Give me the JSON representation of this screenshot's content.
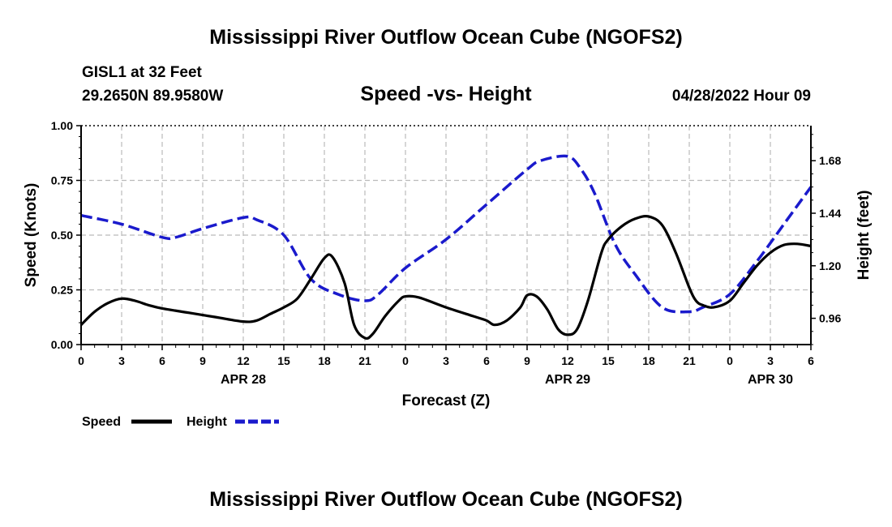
{
  "header": {
    "title": "Mississippi River Outflow Ocean Cube (NGOFS2)",
    "station": "GISL1 at 32 Feet",
    "location": "29.2650N  89.9580W",
    "chart_title": "Speed -vs- Height",
    "datetime": "04/28/2022 Hour 09"
  },
  "footer": {
    "title": "Mississippi River Outflow Ocean Cube (NGOFS2)"
  },
  "colors": {
    "speed": "#000000",
    "height": "#1a1acc",
    "grid": "#bbbbbb"
  },
  "chart_data": {
    "type": "line",
    "title": "Speed -vs- Height",
    "xlabel": "Forecast (Z)",
    "ylabel": "Speed (Knots)",
    "y2label": "Height (feet)",
    "x_range_hours": [
      0,
      54
    ],
    "ylim": [
      0,
      1.0
    ],
    "y2lim": [
      0.84,
      1.84
    ],
    "y_ticks": [
      "0.00",
      "0.25",
      "0.50",
      "0.75",
      "1.00"
    ],
    "y2_ticks": [
      0.96,
      1.2,
      1.44,
      1.68
    ],
    "y2_tick_labels": [
      "0.96",
      "1.20",
      "1.44",
      "1.68"
    ],
    "x_tick_hours": [
      0,
      3,
      6,
      9,
      12,
      15,
      18,
      21,
      24,
      27,
      30,
      33,
      36,
      39,
      42,
      45,
      48,
      51,
      54
    ],
    "x_tick_labels": [
      "0",
      "3",
      "6",
      "9",
      "12",
      "15",
      "18",
      "21",
      "0",
      "3",
      "6",
      "9",
      "12",
      "15",
      "18",
      "21",
      "0",
      "3",
      "6"
    ],
    "dates": [
      {
        "label": "APR 28",
        "hour": 12
      },
      {
        "label": "APR 29",
        "hour": 36
      },
      {
        "label": "APR 30",
        "hour": 51
      }
    ],
    "grid": true,
    "legend": [
      {
        "name": "Speed",
        "style": "solid"
      },
      {
        "name": "Height",
        "style": "dashed"
      }
    ],
    "series": [
      {
        "name": "Speed",
        "axis": "left",
        "style": "solid",
        "x": [
          0,
          1,
          2,
          3,
          4,
          5,
          6,
          8,
          10,
          12,
          13,
          14,
          15,
          16,
          17,
          18,
          18.6,
          19.5,
          20.2,
          21,
          21.6,
          22.5,
          23.5,
          24,
          25,
          27,
          29,
          30,
          30.6,
          31.5,
          32.5,
          33,
          33.7,
          34.5,
          35.3,
          36,
          36.7,
          37.5,
          38.5,
          39,
          40,
          41,
          42,
          43,
          44,
          45,
          45.5,
          46,
          46.8,
          48,
          49,
          50,
          51,
          52,
          53,
          54
        ],
        "values": [
          0.09,
          0.15,
          0.19,
          0.21,
          0.2,
          0.18,
          0.165,
          0.145,
          0.125,
          0.105,
          0.11,
          0.14,
          0.17,
          0.21,
          0.3,
          0.395,
          0.4,
          0.28,
          0.09,
          0.03,
          0.05,
          0.13,
          0.2,
          0.22,
          0.215,
          0.17,
          0.13,
          0.11,
          0.09,
          0.11,
          0.17,
          0.225,
          0.22,
          0.16,
          0.07,
          0.045,
          0.07,
          0.2,
          0.42,
          0.48,
          0.54,
          0.575,
          0.585,
          0.545,
          0.42,
          0.26,
          0.2,
          0.18,
          0.17,
          0.2,
          0.28,
          0.36,
          0.42,
          0.455,
          0.46,
          0.45
        ]
      },
      {
        "name": "Height",
        "axis": "right",
        "style": "dashed",
        "x": [
          0,
          3,
          6,
          7,
          9,
          12,
          13,
          15,
          17,
          19,
          21,
          22,
          24,
          27,
          30,
          33,
          34,
          36,
          37,
          38,
          39.5,
          41,
          43,
          45,
          46,
          48,
          50,
          52,
          54
        ],
        "values": [
          1.43,
          1.39,
          1.33,
          1.33,
          1.37,
          1.42,
          1.41,
          1.34,
          1.14,
          1.07,
          1.04,
          1.07,
          1.19,
          1.32,
          1.48,
          1.64,
          1.68,
          1.7,
          1.64,
          1.53,
          1.3,
          1.16,
          1.01,
          0.99,
          1.01,
          1.07,
          1.22,
          1.39,
          1.56
        ]
      }
    ]
  }
}
